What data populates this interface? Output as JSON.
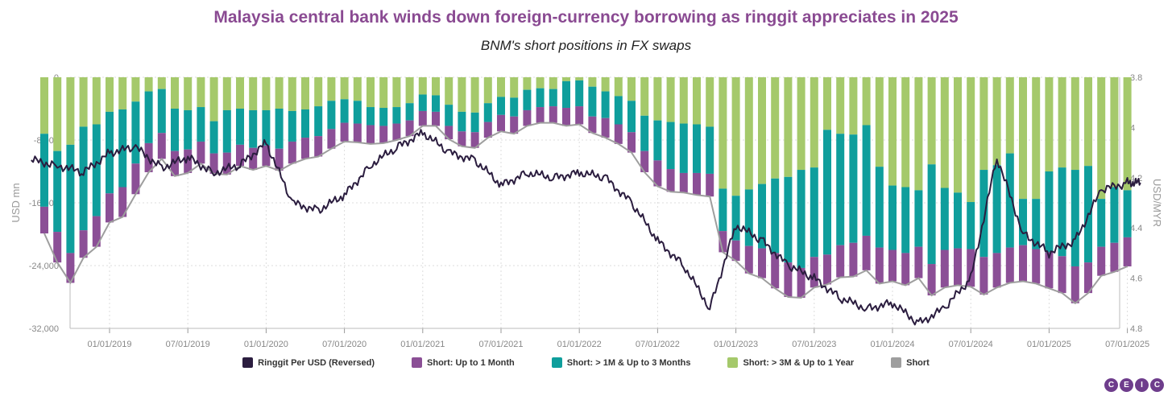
{
  "header": {
    "title": "Malaysia central bank winds down foreign-currency borrowing as ringgit appreciates in 2025",
    "subtitle": "BNM's short positions in FX swaps"
  },
  "colors": {
    "title": "#8a4a92",
    "up_to_1m": "#8b4f96",
    "m1_to_3m": "#0f9e9c",
    "m3_to_1y": "#a5c96b",
    "short_total": "#9e9e9e",
    "ringgit": "#2b1d3f"
  },
  "legend": [
    {
      "label": "Ringgit Per USD (Reversed)",
      "color": "#2b1d3f"
    },
    {
      "label": "Short: Up to 1 Month",
      "color": "#8b4f96"
    },
    {
      "label": "Short: > 1M & Up to 3 Months",
      "color": "#0f9e9c"
    },
    {
      "label": "Short: > 3M & Up to 1 Year",
      "color": "#a5c96b"
    },
    {
      "label": "Short",
      "color": "#9e9e9e"
    }
  ],
  "logo": [
    "C",
    "E",
    "I",
    "C"
  ],
  "chart_data": {
    "type": "bar",
    "stacked": true,
    "title": "Malaysia central bank winds down foreign-currency borrowing as ringgit appreciates in 2025",
    "subtitle": "BNM's short positions in FX swaps",
    "ylabel": "USD mn",
    "y2label": "USD/MYR",
    "ylim": [
      -32000,
      0
    ],
    "yticks": [
      0,
      -8000,
      -16000,
      -24000,
      -32000
    ],
    "ytick_labels": [
      "0",
      "-8,000",
      "-16,000",
      "-24,000",
      "-32,000"
    ],
    "y2lim": [
      3.8,
      4.8
    ],
    "y2_reversed": true,
    "y2ticks": [
      3.8,
      4.0,
      4.2,
      4.4,
      4.6,
      4.8
    ],
    "y2tick_labels": [
      "3.8",
      "4",
      "4.2",
      "4.4",
      "4.6",
      "4.8"
    ],
    "xticks": [
      "01/01/2019",
      "07/01/2019",
      "01/01/2020",
      "07/01/2020",
      "01/01/2021",
      "07/01/2021",
      "01/01/2022",
      "07/01/2022",
      "01/01/2023",
      "07/01/2023",
      "01/01/2024",
      "07/01/2024",
      "01/01/2025",
      "07/01/2025"
    ],
    "categories": [
      "2018-08",
      "2018-09",
      "2018-10",
      "2018-11",
      "2018-12",
      "2019-01",
      "2019-02",
      "2019-03",
      "2019-04",
      "2019-05",
      "2019-06",
      "2019-07",
      "2019-08",
      "2019-09",
      "2019-10",
      "2019-11",
      "2019-12",
      "2020-01",
      "2020-02",
      "2020-03",
      "2020-04",
      "2020-05",
      "2020-06",
      "2020-07",
      "2020-08",
      "2020-09",
      "2020-10",
      "2020-11",
      "2020-12",
      "2021-01",
      "2021-02",
      "2021-03",
      "2021-04",
      "2021-05",
      "2021-06",
      "2021-07",
      "2021-08",
      "2021-09",
      "2021-10",
      "2021-11",
      "2021-12",
      "2022-01",
      "2022-02",
      "2022-03",
      "2022-04",
      "2022-05",
      "2022-06",
      "2022-07",
      "2022-08",
      "2022-09",
      "2022-10",
      "2022-11",
      "2022-12",
      "2023-01",
      "2023-02",
      "2023-03",
      "2023-04",
      "2023-05",
      "2023-06",
      "2023-07",
      "2023-08",
      "2023-09",
      "2023-10",
      "2023-11",
      "2023-12",
      "2024-01",
      "2024-02",
      "2024-03",
      "2024-04",
      "2024-05",
      "2024-06",
      "2024-07",
      "2024-08",
      "2024-09",
      "2024-10",
      "2024-11",
      "2024-12",
      "2025-01",
      "2025-02",
      "2025-03",
      "2025-04",
      "2025-05",
      "2025-06",
      "2025-07"
    ],
    "series": [
      {
        "name": "Short: > 3M & Up to 1 Year",
        "values": [
          -7200,
          -9400,
          -8600,
          -6300,
          -6000,
          -4400,
          -4100,
          -3100,
          -1800,
          -1500,
          -4000,
          -4200,
          -3800,
          -5600,
          -4200,
          -4000,
          -4200,
          -4200,
          -4000,
          -4300,
          -4100,
          -3700,
          -3000,
          -2800,
          -3000,
          -3800,
          -3900,
          -3800,
          -3300,
          -2200,
          -2300,
          -3500,
          -4400,
          -4500,
          -3300,
          -2500,
          -2600,
          -1600,
          -1400,
          -1500,
          -500,
          -400,
          -1200,
          -1800,
          -2400,
          -3000,
          -4900,
          -5500,
          -5700,
          -5900,
          -6000,
          -6300,
          -14200,
          -15100,
          -14300,
          -13600,
          -12900,
          -12700,
          -11800,
          -11500,
          -6700,
          -7200,
          -7300,
          -6100,
          -11400,
          -13800,
          -14000,
          -14400,
          -11100,
          -14100,
          -14700,
          -15900,
          -11800,
          -11200,
          -9700,
          -15500,
          -15500,
          -12000,
          -11500,
          -11800,
          -11300,
          -15500,
          -14000,
          -14400
        ]
      },
      {
        "name": "Short: > 1M & Up to 3 Months",
        "values": [
          -9300,
          -10300,
          -13800,
          -13200,
          -11700,
          -10400,
          -9900,
          -7900,
          -6600,
          -5600,
          -5400,
          -5000,
          -4400,
          -4100,
          -5400,
          -4600,
          -4800,
          -4500,
          -5100,
          -3900,
          -3600,
          -3800,
          -3600,
          -3000,
          -2900,
          -2300,
          -2300,
          -2100,
          -2200,
          -2100,
          -2100,
          -2700,
          -2500,
          -2500,
          -2400,
          -2300,
          -2400,
          -2600,
          -2400,
          -2200,
          -3400,
          -3300,
          -3800,
          -3400,
          -3600,
          -4000,
          -4500,
          -5100,
          -6000,
          -6300,
          -6200,
          -6000,
          -5400,
          -5700,
          -7200,
          -8200,
          -9500,
          -10900,
          -12500,
          -11400,
          -15900,
          -14200,
          -13800,
          -14100,
          -10300,
          -8200,
          -8400,
          -7200,
          -12700,
          -7900,
          -7100,
          -6000,
          -11100,
          -11200,
          -12000,
          -5900,
          -6400,
          -10300,
          -11300,
          -12300,
          -12300,
          -6100,
          -7100,
          -6000
        ]
      },
      {
        "name": "Short: Up to 1 Month",
        "values": [
          -3400,
          -3900,
          -3800,
          -3500,
          -3900,
          -3700,
          -3800,
          -3900,
          -3700,
          -3300,
          -3200,
          -3000,
          -2800,
          -2600,
          -2800,
          -2700,
          -2800,
          -2600,
          -2800,
          -2800,
          -2700,
          -2600,
          -2500,
          -2400,
          -2400,
          -2400,
          -2200,
          -2100,
          -2000,
          -1900,
          -1800,
          -1700,
          -1900,
          -2000,
          -2000,
          -2100,
          -2200,
          -2000,
          -2000,
          -2100,
          -2300,
          -2300,
          -2100,
          -2500,
          -2500,
          -2600,
          -2700,
          -3300,
          -2900,
          -2500,
          -2800,
          -2900,
          -2700,
          -2600,
          -3500,
          -3800,
          -4500,
          -4400,
          -3800,
          -3900,
          -3800,
          -4100,
          -4300,
          -4400,
          -4600,
          -4000,
          -4100,
          -4000,
          -4000,
          -4800,
          -4700,
          -4800,
          -4800,
          -4400,
          -4500,
          -4600,
          -4400,
          -4600,
          -4700,
          -4700,
          -3900,
          -3700,
          -3700,
          -3700
        ]
      },
      {
        "name": "Short",
        "values": [
          -19900,
          -23600,
          -26200,
          -23000,
          -21600,
          -18500,
          -17800,
          -14900,
          -12100,
          -10400,
          -12600,
          -12200,
          -11000,
          -12300,
          -12400,
          -11300,
          -11800,
          -11300,
          -11900,
          -11000,
          -10400,
          -10100,
          -9100,
          -8200,
          -8300,
          -8500,
          -8400,
          -8000,
          -7500,
          -6200,
          -6200,
          -7900,
          -8800,
          -9000,
          -7700,
          -6900,
          -7200,
          -6200,
          -5800,
          -5800,
          -6200,
          -6000,
          -7100,
          -7700,
          -8500,
          -9600,
          -12100,
          -13900,
          -14600,
          -14700,
          -15000,
          -15200,
          -22300,
          -23400,
          -25000,
          -25600,
          -26900,
          -28000,
          -28100,
          -26800,
          -26400,
          -25500,
          -25400,
          -24600,
          -26300,
          -26000,
          -26500,
          -25600,
          -27800,
          -26800,
          -26500,
          -26700,
          -27700,
          -26800,
          -26200,
          -26000,
          -26300,
          -26900,
          -27500,
          -28800,
          -27500,
          -25300,
          -24800,
          -24100
        ]
      }
    ],
    "line": {
      "name": "Ringgit Per USD (Reversed)",
      "axis": "right",
      "dates": [
        "2018-07",
        "2018-09",
        "2018-11",
        "2019-01",
        "2019-03",
        "2019-05",
        "2019-07",
        "2019-09",
        "2019-11",
        "2020-01",
        "2020-03",
        "2020-05",
        "2020-07",
        "2020-09",
        "2020-11",
        "2021-01",
        "2021-03",
        "2021-05",
        "2021-07",
        "2021-09",
        "2021-11",
        "2022-01",
        "2022-03",
        "2022-05",
        "2022-07",
        "2022-09",
        "2022-11",
        "2023-01",
        "2023-03",
        "2023-05",
        "2023-07",
        "2023-09",
        "2023-11",
        "2024-01",
        "2024-03",
        "2024-05",
        "2024-07",
        "2024-09",
        "2024-11",
        "2025-01",
        "2025-03",
        "2025-05",
        "2025-07",
        "2025-08"
      ],
      "values": [
        4.13,
        4.15,
        4.18,
        4.1,
        4.08,
        4.16,
        4.12,
        4.18,
        4.15,
        4.06,
        4.3,
        4.33,
        4.27,
        4.15,
        4.08,
        4.02,
        4.1,
        4.13,
        4.23,
        4.18,
        4.2,
        4.18,
        4.2,
        4.3,
        4.45,
        4.55,
        4.72,
        4.39,
        4.45,
        4.55,
        4.6,
        4.68,
        4.72,
        4.7,
        4.78,
        4.72,
        4.6,
        4.12,
        4.42,
        4.5,
        4.45,
        4.25,
        4.22,
        4.22
      ]
    }
  }
}
